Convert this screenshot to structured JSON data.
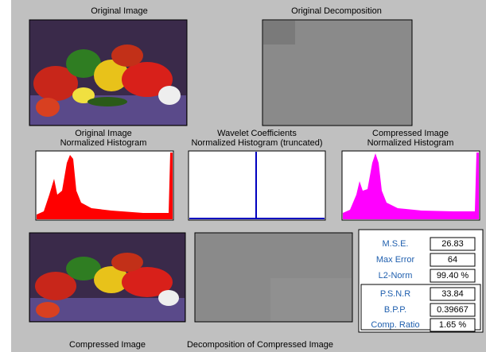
{
  "original_image": {
    "title": "Original Image"
  },
  "original_decomposition": {
    "title": "Original Decomposition"
  },
  "histograms": [
    {
      "title": [
        "Original Image",
        "Normalized Histogram"
      ]
    },
    {
      "title": [
        "Wavelet Coefficients",
        "Normalized Histogram (truncated)"
      ]
    },
    {
      "title": [
        "Compressed Image",
        "Normalized Histogram"
      ]
    }
  ],
  "compressed_image": {
    "title": "Compressed Image"
  },
  "compressed_decomposition": {
    "title": "Decomposition of Compressed Image"
  },
  "stats": [
    {
      "label": "M.S.E.",
      "value": "26.83"
    },
    {
      "label": "Max Error",
      "value": "64"
    },
    {
      "label": "L2-Norm",
      "value": "99.40 %"
    },
    {
      "label": "P.S.N.R",
      "value": "33.84"
    },
    {
      "label": "B.P.P.",
      "value": "0.39667"
    },
    {
      "label": "Comp. Ratio",
      "value": "1.65 %"
    }
  ]
}
